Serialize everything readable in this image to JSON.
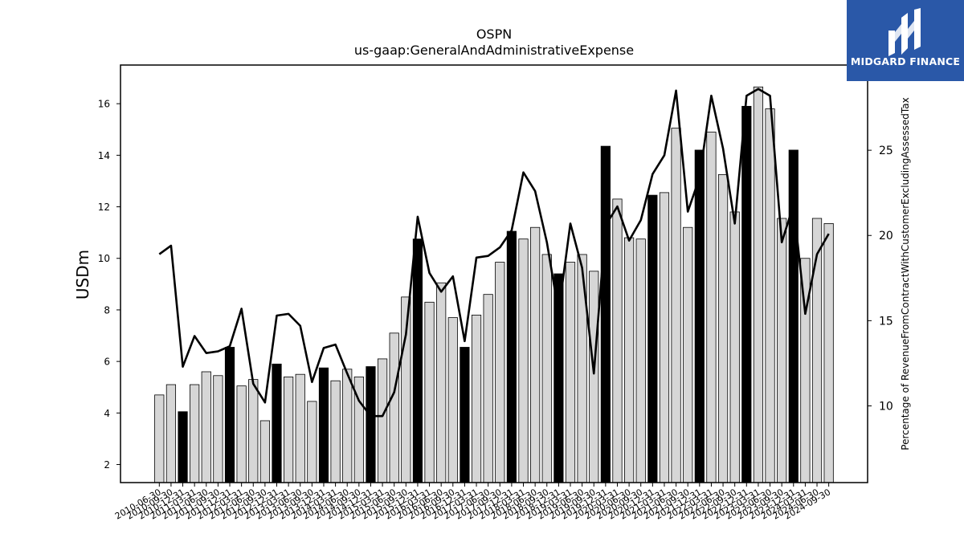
{
  "brand": {
    "name": "MIDGARD FINANCE",
    "bg_color": "#2a58a8"
  },
  "chart_data": {
    "type": "bar",
    "title": "OSPN",
    "subtitle": "us-gaap:GeneralAndAdministrativeExpense",
    "ylabel": "USDm",
    "y2label": "Percentage of RevenueFromContractWithCustomerExcludingAssessedTax",
    "ylim": [
      1.3,
      17.5
    ],
    "y2lim": [
      5.5,
      30.0
    ],
    "yticks": [
      2,
      4,
      6,
      8,
      10,
      12,
      14,
      16
    ],
    "y2ticks": [
      10,
      15,
      20,
      25
    ],
    "categories": [
      "2010-06-30",
      "2010-09-30",
      "2010-12-31",
      "2011-03-31",
      "2011-06-30",
      "2011-09-30",
      "2011-12-31",
      "2012-03-31",
      "2012-06-30",
      "2012-09-30",
      "2012-12-31",
      "2013-03-31",
      "2013-06-30",
      "2013-09-30",
      "2013-12-31",
      "2014-03-31",
      "2014-06-30",
      "2014-09-30",
      "2014-12-31",
      "2015-03-31",
      "2015-06-30",
      "2015-09-30",
      "2015-12-31",
      "2016-03-31",
      "2016-06-30",
      "2016-09-30",
      "2016-12-31",
      "2017-03-31",
      "2017-06-30",
      "2017-09-30",
      "2017-12-31",
      "2018-03-31",
      "2018-06-30",
      "2018-09-30",
      "2018-12-31",
      "2019-03-31",
      "2019-06-30",
      "2019-09-30",
      "2019-12-31",
      "2020-03-31",
      "2020-06-30",
      "2020-09-30",
      "2020-12-31",
      "2021-03-31",
      "2021-06-30",
      "2021-09-30",
      "2021-12-31",
      "2022-03-31",
      "2022-06-30",
      "2022-09-30",
      "2022-12-31",
      "2023-03-31",
      "2023-06-30",
      "2023-09-30",
      "2023-12-31",
      "2024-03-31",
      "2024-06-30",
      "2024-09-30"
    ],
    "series": [
      {
        "kind": "bar",
        "axis": "left",
        "values": [
          4.7,
          5.1,
          4.05,
          5.1,
          5.6,
          5.45,
          6.55,
          5.05,
          5.3,
          3.7,
          5.9,
          5.4,
          5.5,
          4.45,
          5.75,
          5.25,
          5.7,
          5.4,
          5.8,
          6.1,
          7.1,
          8.5,
          10.75,
          8.3,
          9.05,
          7.7,
          6.55,
          7.8,
          8.6,
          9.85,
          11.05,
          10.75,
          11.2,
          10.15,
          9.4,
          9.85,
          10.15,
          9.5,
          14.35,
          12.3,
          10.8,
          10.75,
          12.45,
          12.55,
          15.05,
          11.2,
          14.2,
          14.9,
          13.25,
          11.8,
          15.9,
          16.65,
          15.8,
          11.55,
          14.2,
          10.0,
          11.55,
          11.35
        ],
        "highlight": [
          false,
          false,
          true,
          false,
          false,
          false,
          true,
          false,
          false,
          false,
          true,
          false,
          false,
          false,
          true,
          false,
          false,
          false,
          true,
          false,
          false,
          false,
          true,
          false,
          false,
          false,
          true,
          false,
          false,
          false,
          true,
          false,
          false,
          false,
          true,
          false,
          false,
          false,
          true,
          false,
          false,
          false,
          true,
          false,
          false,
          false,
          true,
          false,
          false,
          false,
          true,
          false,
          false,
          false,
          true,
          false,
          false,
          false
        ],
        "fill_color": "#d6d6d6",
        "highlight_color": "#000000"
      },
      {
        "kind": "line",
        "axis": "right",
        "values": [
          18.9,
          19.4,
          12.3,
          14.1,
          13.1,
          13.2,
          13.5,
          15.7,
          11.3,
          10.2,
          15.3,
          15.4,
          14.7,
          11.4,
          13.4,
          13.6,
          11.9,
          10.3,
          9.4,
          9.4,
          10.8,
          14.2,
          21.1,
          17.8,
          16.7,
          17.6,
          13.8,
          18.7,
          18.8,
          19.3,
          20.3,
          23.7,
          22.6,
          19.6,
          15.5,
          20.7,
          18.1,
          11.9,
          20.6,
          21.7,
          19.7,
          20.9,
          23.6,
          24.7,
          28.5,
          21.4,
          23.4,
          28.2,
          25.1,
          20.7,
          28.2,
          28.6,
          28.2,
          19.6,
          21.8,
          15.4,
          18.9,
          20.1
        ],
        "color": "#000000"
      }
    ]
  }
}
